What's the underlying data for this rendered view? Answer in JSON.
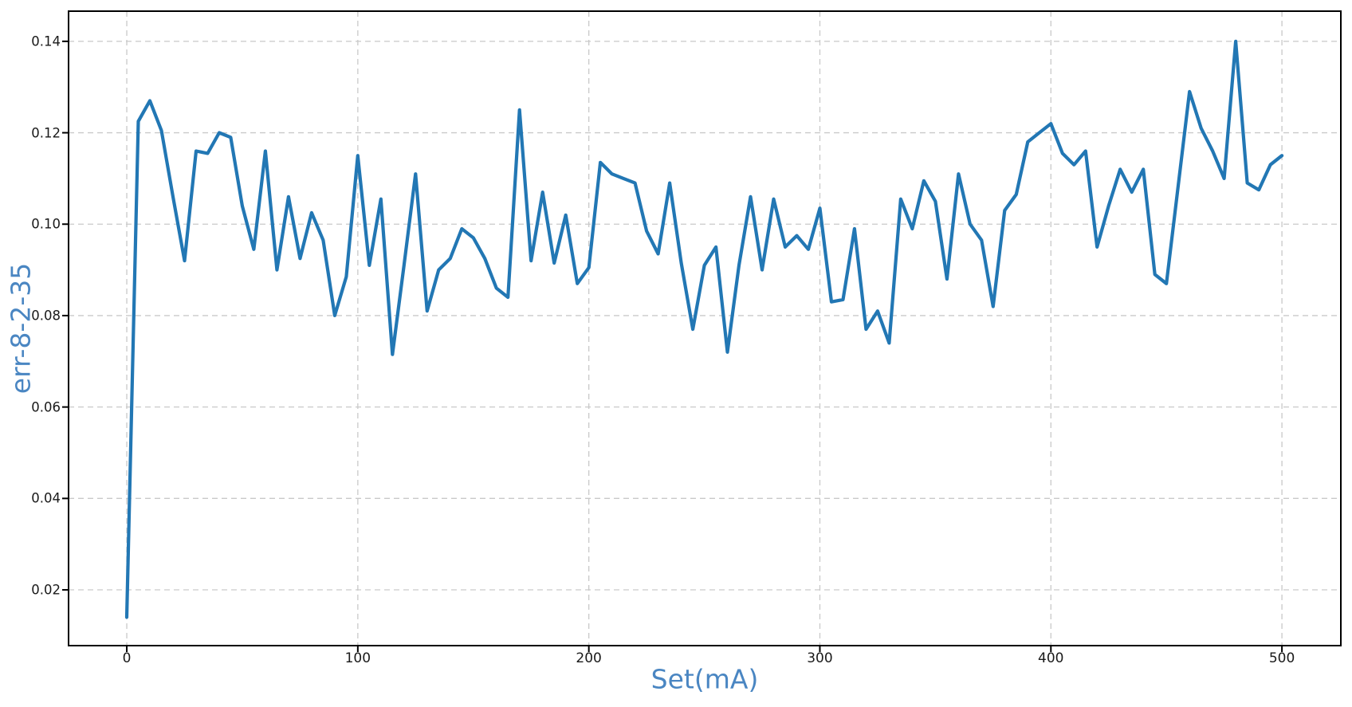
{
  "figure": {
    "xlabel": "Set(mA)",
    "ylabel": "err-8-2-35"
  },
  "chart_data": {
    "type": "line",
    "title": "",
    "xlabel": "Set(mA)",
    "ylabel": "err-8-2-35",
    "x": [
      0,
      5,
      10,
      15,
      20,
      25,
      30,
      35,
      40,
      45,
      50,
      55,
      60,
      65,
      70,
      75,
      80,
      85,
      90,
      95,
      100,
      105,
      110,
      115,
      120,
      125,
      130,
      135,
      140,
      145,
      150,
      155,
      160,
      165,
      170,
      175,
      180,
      185,
      190,
      195,
      200,
      205,
      210,
      215,
      220,
      225,
      230,
      235,
      240,
      245,
      250,
      255,
      260,
      265,
      270,
      275,
      280,
      285,
      290,
      295,
      300,
      305,
      310,
      315,
      320,
      325,
      330,
      335,
      340,
      345,
      350,
      355,
      360,
      365,
      370,
      375,
      380,
      385,
      390,
      395,
      400,
      405,
      410,
      415,
      420,
      425,
      430,
      435,
      440,
      445,
      450,
      455,
      460,
      465,
      470,
      475,
      480,
      485,
      490,
      495,
      500
    ],
    "y": [
      0.014,
      0.1225,
      0.127,
      0.1205,
      0.106,
      0.092,
      0.116,
      0.1155,
      0.12,
      0.119,
      0.104,
      0.0945,
      0.116,
      0.09,
      0.106,
      0.0925,
      0.1025,
      0.0965,
      0.08,
      0.0885,
      0.115,
      0.091,
      0.1055,
      0.0715,
      0.091,
      0.111,
      0.081,
      0.09,
      0.0925,
      0.099,
      0.097,
      0.0925,
      0.086,
      0.084,
      0.125,
      0.092,
      0.107,
      0.0915,
      0.102,
      0.087,
      0.0905,
      0.1135,
      0.111,
      0.11,
      0.109,
      0.0985,
      0.0935,
      0.109,
      0.0915,
      0.077,
      0.091,
      0.095,
      0.072,
      0.091,
      0.106,
      0.09,
      0.1055,
      0.095,
      0.0975,
      0.0945,
      0.1035,
      0.083,
      0.0835,
      0.099,
      0.077,
      0.081,
      0.074,
      0.1055,
      0.099,
      0.1095,
      0.105,
      0.088,
      0.111,
      0.1,
      0.0965,
      0.082,
      0.103,
      0.1065,
      0.118,
      0.12,
      0.122,
      0.1155,
      0.113,
      0.116,
      0.095,
      0.104,
      0.112,
      0.107,
      0.112,
      0.089,
      0.087,
      0.108,
      0.129,
      0.121,
      0.116,
      0.11,
      0.14,
      0.109,
      0.1075,
      0.113,
      0.115
    ],
    "xlim": [
      -25.2,
      525.5
    ],
    "ylim": [
      0.0078,
      0.1466
    ],
    "xticks": [
      0,
      100,
      200,
      300,
      400,
      500
    ],
    "xtick_labels": [
      "0",
      "100",
      "200",
      "300",
      "400",
      "500"
    ],
    "yticks": [
      0.02,
      0.04,
      0.06,
      0.08,
      0.1,
      0.12,
      0.14
    ],
    "ytick_labels": [
      "0.02",
      "0.04",
      "0.06",
      "0.08",
      "0.10",
      "0.12",
      "0.14"
    ],
    "grid": true,
    "grid_style": "dashed",
    "legend": "none",
    "colors": {
      "line": "#2277b4",
      "axis_label": "#4a86c2",
      "tick_label": "#1a1a1a",
      "grid": "#c9c9c9",
      "spine": "#000000",
      "background": "#ffffff"
    }
  }
}
